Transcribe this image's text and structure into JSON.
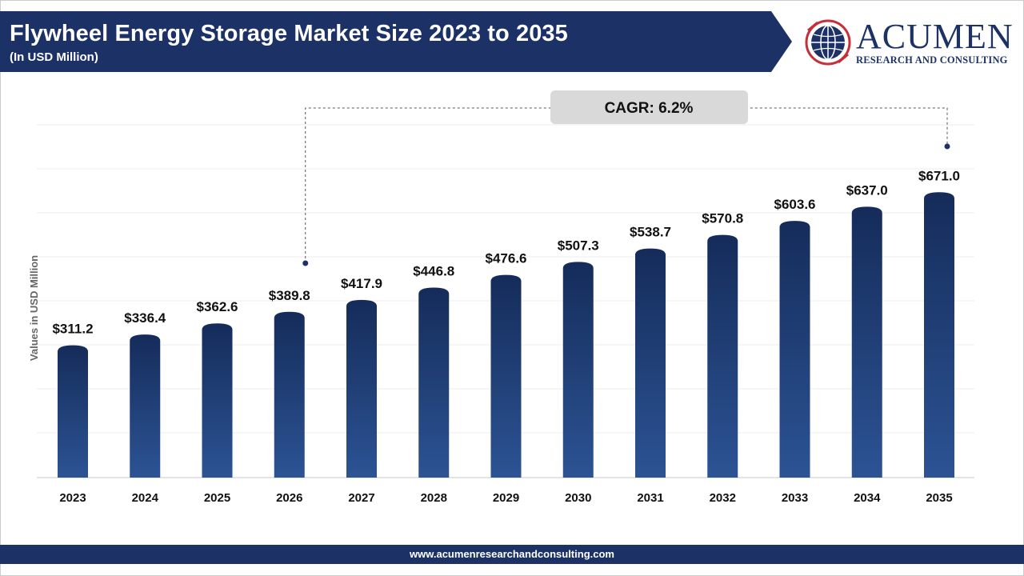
{
  "header": {
    "title": "Flywheel Energy Storage Market Size 2023 to 2035",
    "subtitle": "(In USD Million)"
  },
  "logo": {
    "wordmark": "ACUMEN",
    "tagline": "RESEARCH AND CONSULTING"
  },
  "footer": {
    "url": "www.acumenresearchandconsulting.com"
  },
  "colors": {
    "banner": "#1c3266",
    "bar_top": "#152c5a",
    "bar_bottom": "#2c5394",
    "logo_red": "#c62f3a"
  },
  "chart_data": {
    "type": "bar",
    "ylabel": "Values in USD Million",
    "categories": [
      "2023",
      "2024",
      "2025",
      "2026",
      "2027",
      "2028",
      "2029",
      "2030",
      "2031",
      "2032",
      "2033",
      "2034",
      "2035"
    ],
    "values": [
      311.2,
      336.4,
      362.6,
      389.8,
      417.9,
      446.8,
      476.6,
      507.3,
      538.7,
      570.8,
      603.6,
      637.0,
      671.0
    ],
    "data_labels": [
      "$311.2",
      "$336.4",
      "$362.6",
      "$389.8",
      "$417.9",
      "$446.8",
      "$476.6",
      "$507.3",
      "$538.7",
      "$570.8",
      "$603.6",
      "$637.0",
      "$671.0"
    ],
    "ylim": [
      0,
      800
    ],
    "grid": true,
    "annotation": {
      "text": "CAGR: 6.2%",
      "from_category": "2026",
      "to_category": "2035"
    }
  }
}
